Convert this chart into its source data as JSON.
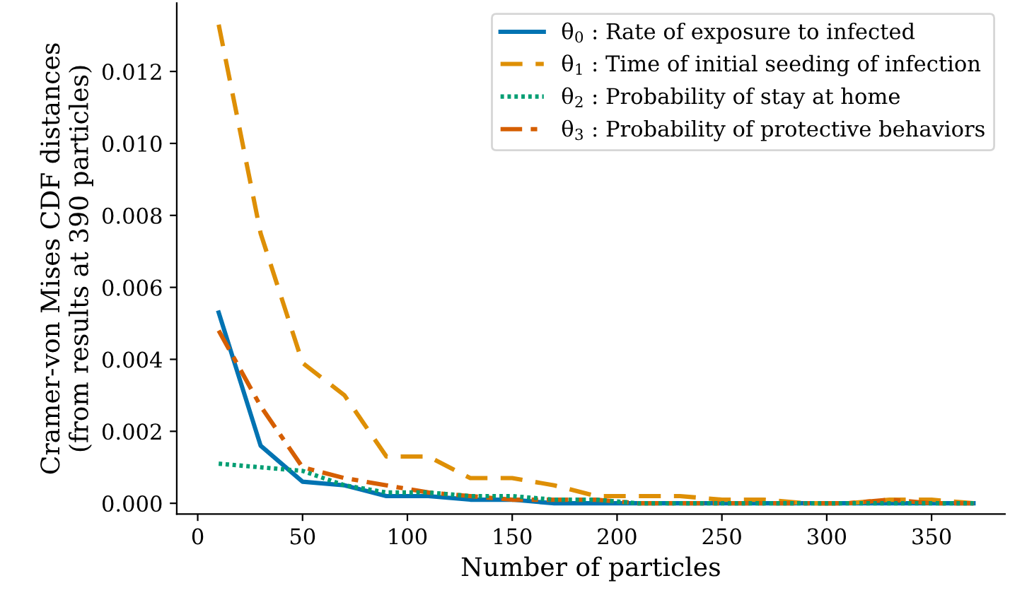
{
  "chart_data": {
    "type": "line",
    "xlabel": "Number of particles",
    "ylabel": "Cramer-von Mises CDF distances\n(from results at 390 particles)",
    "x": [
      10,
      30,
      50,
      70,
      90,
      110,
      130,
      150,
      170,
      190,
      210,
      230,
      250,
      270,
      290,
      310,
      330,
      350,
      370
    ],
    "series": [
      {
        "name": "θ$_{0}$ : Rate of exposure to infected",
        "color": "#0173b2",
        "line_style": "solid",
        "values": [
          0.0053,
          0.0016,
          0.0006,
          0.0005,
          0.0002,
          0.0002,
          0.0001,
          0.0001,
          0,
          0,
          0,
          0,
          0,
          0,
          0,
          0,
          0,
          0,
          0
        ]
      },
      {
        "name": "θ$_{1}$ : Time of initial seeding of infection",
        "color": "#de8f05",
        "line_style": "dashed",
        "values": [
          0.0133,
          0.0075,
          0.0039,
          0.003,
          0.0013,
          0.0013,
          0.0007,
          0.0007,
          0.0005,
          0.0002,
          0.0002,
          0.0002,
          0.0001,
          0.0001,
          0,
          0,
          0.0001,
          0.0001,
          0
        ]
      },
      {
        "name": "θ$_{2}$ : Probability of stay at home",
        "color": "#029e73",
        "line_style": "dotted",
        "values": [
          0.0011,
          0.001,
          0.0009,
          0.0005,
          0.0003,
          0.0003,
          0.0002,
          0.0002,
          0.0001,
          0.0001,
          0,
          0,
          0,
          0,
          0,
          0,
          0,
          0,
          0
        ]
      },
      {
        "name": "θ$_{3}$ : Probability of protective behaviors",
        "color": "#d55e00",
        "line_style": "dashdot",
        "values": [
          0.0048,
          0.0027,
          0.001,
          0.0007,
          0.0005,
          0.0003,
          0.0002,
          0.0001,
          0.0001,
          0.0001,
          0,
          0,
          0,
          0,
          0,
          0,
          0.0001,
          0,
          0
        ]
      }
    ],
    "xlim": [
      -10,
      385
    ],
    "ylim": [
      -0.0003,
      0.0139
    ],
    "xticks": [
      0,
      50,
      100,
      150,
      200,
      250,
      300,
      350
    ],
    "yticks": [
      {
        "value": 0,
        "label": "0.000"
      },
      {
        "value": 0.002,
        "label": "0.002"
      },
      {
        "value": 0.004,
        "label": "0.004"
      },
      {
        "value": 0.006,
        "label": "0.006"
      },
      {
        "value": 0.008,
        "label": "0.008"
      },
      {
        "value": 0.01,
        "label": "0.010"
      },
      {
        "value": 0.012,
        "label": "0.012"
      }
    ],
    "grid": false,
    "legend": "top right"
  }
}
